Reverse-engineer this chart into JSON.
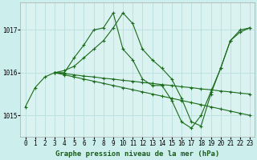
{
  "title": "Graphe pression niveau de la mer (hPa)",
  "background_color": "#cceeed",
  "plot_bg_color": "#daf2f0",
  "grid_color": "#b8dedd",
  "line_color": "#1a6b1a",
  "series": [
    {
      "x": [
        0,
        1,
        2,
        3,
        4,
        5,
        6,
        7,
        8,
        9,
        10,
        11,
        12,
        13,
        14,
        15,
        16,
        17,
        18,
        19,
        20,
        21,
        22,
        23
      ],
      "y": [
        1015.2,
        1015.65,
        1015.9,
        1016.0,
        1016.05,
        1016.15,
        1016.35,
        1016.55,
        1016.75,
        1017.05,
        1017.4,
        1017.15,
        1016.55,
        1016.3,
        1016.1,
        1015.85,
        1015.4,
        1014.85,
        1014.75,
        1015.5,
        1016.1,
        1016.75,
        1017.0,
        1017.05
      ]
    },
    {
      "x": [
        3,
        4,
        5,
        6,
        7,
        8,
        9,
        10,
        11,
        12,
        13,
        14,
        15,
        16,
        17,
        18,
        19,
        20,
        21,
        22,
        23
      ],
      "y": [
        1016.0,
        1016.0,
        1016.35,
        1016.65,
        1017.0,
        1017.05,
        1017.4,
        1016.55,
        1016.3,
        1015.85,
        1015.7,
        1015.7,
        1015.35,
        1014.85,
        1014.7,
        1015.0,
        1015.55,
        1016.1,
        1016.75,
        1016.95,
        1017.05
      ]
    },
    {
      "x": [
        3,
        4,
        5,
        6,
        7,
        8,
        9,
        10,
        11,
        12,
        13,
        14,
        15,
        16,
        17,
        18,
        19,
        20,
        21,
        22,
        23
      ],
      "y": [
        1016.0,
        1015.98,
        1015.95,
        1015.92,
        1015.9,
        1015.87,
        1015.85,
        1015.82,
        1015.8,
        1015.77,
        1015.75,
        1015.72,
        1015.7,
        1015.67,
        1015.65,
        1015.62,
        1015.6,
        1015.57,
        1015.55,
        1015.52,
        1015.5
      ]
    },
    {
      "x": [
        3,
        4,
        5,
        6,
        7,
        8,
        9,
        10,
        11,
        12,
        13,
        14,
        15,
        16,
        17,
        18,
        19,
        20,
        21,
        22,
        23
      ],
      "y": [
        1016.0,
        1015.95,
        1015.9,
        1015.85,
        1015.8,
        1015.75,
        1015.7,
        1015.65,
        1015.6,
        1015.55,
        1015.5,
        1015.45,
        1015.4,
        1015.35,
        1015.3,
        1015.25,
        1015.2,
        1015.15,
        1015.1,
        1015.05,
        1015.0
      ]
    }
  ],
  "yticks": [
    1015,
    1016,
    1017
  ],
  "ylim": [
    1014.5,
    1017.65
  ],
  "xlim": [
    -0.5,
    23.5
  ],
  "xticks": [
    0,
    1,
    2,
    3,
    4,
    5,
    6,
    7,
    8,
    9,
    10,
    11,
    12,
    13,
    14,
    15,
    16,
    17,
    18,
    19,
    20,
    21,
    22,
    23
  ],
  "tick_fontsize": 5.5,
  "title_fontsize": 6.5,
  "marker_size": 3.0,
  "line_width": 0.8
}
